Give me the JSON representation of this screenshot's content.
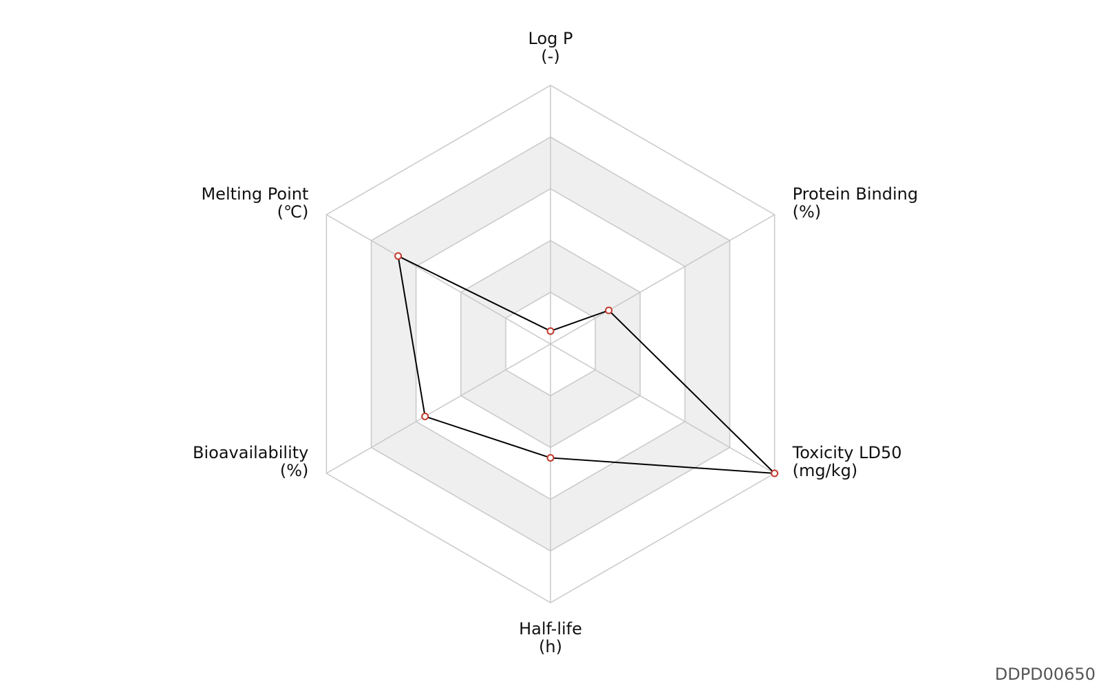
{
  "chart_data": {
    "type": "radar",
    "axes": [
      {
        "name": "Log P",
        "unit": "(-)"
      },
      {
        "name": "Protein Binding",
        "unit": "(%)"
      },
      {
        "name": "Toxicity LD50",
        "unit": "(mg/kg)"
      },
      {
        "name": "Half-life",
        "unit": "(h)"
      },
      {
        "name": "Bioavailability",
        "unit": "(%)"
      },
      {
        "name": "Melting Point",
        "unit": "(℃)"
      }
    ],
    "values": [
      0.05,
      0.26,
      1.0,
      0.44,
      0.56,
      0.68
    ],
    "rings": 5,
    "range": [
      0,
      1
    ],
    "colors": {
      "line": "#000000",
      "marker_edge": "#c0392b",
      "marker_fill": "#ffffff",
      "grid": "#c8c8c8",
      "band": "#efefef"
    }
  },
  "code": "DDPD00650"
}
